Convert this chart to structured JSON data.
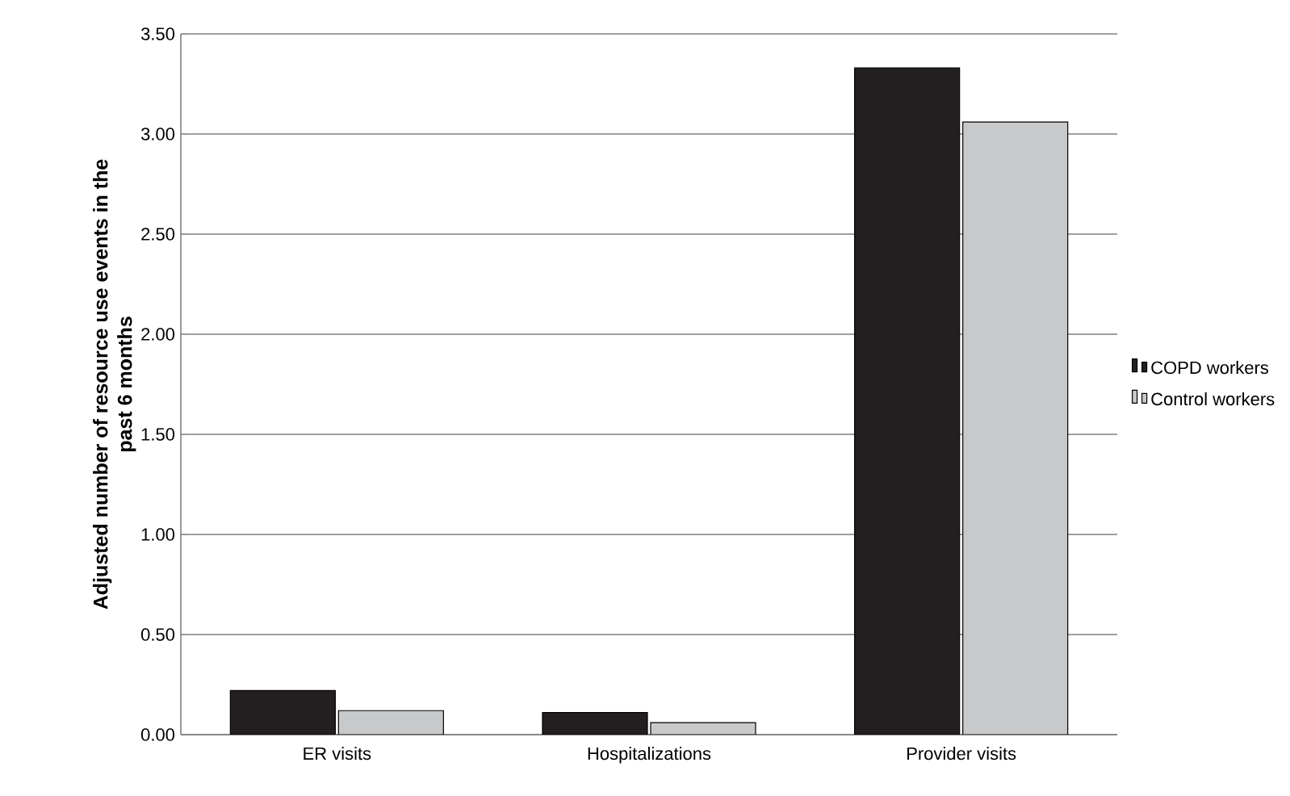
{
  "chart_data": {
    "type": "bar",
    "ylabel": "Adjusted number of resource use events in the past 6 months",
    "categories": [
      "ER visits",
      "Hospitalizations",
      "Provider visits"
    ],
    "series": [
      {
        "name": "COPD workers",
        "color": "#231f20",
        "values": [
          0.22,
          0.11,
          3.33
        ]
      },
      {
        "name": "Control workers",
        "color": "#c8c9ca",
        "values": [
          0.12,
          0.06,
          3.06
        ]
      }
    ],
    "ylim": [
      0,
      3.5
    ],
    "yticks": [
      {
        "value": 0,
        "label": "0.00"
      },
      {
        "value": 0.5,
        "label": "0.50"
      },
      {
        "value": 1,
        "label": "1.00"
      },
      {
        "value": 1.5,
        "label": "1.50"
      },
      {
        "value": 2,
        "label": "2.00"
      },
      {
        "value": 2.5,
        "label": "2.50"
      },
      {
        "value": 3,
        "label": "3.00"
      },
      {
        "value": 3.5,
        "label": "3.50"
      }
    ],
    "grid": "y",
    "legend": "right"
  }
}
